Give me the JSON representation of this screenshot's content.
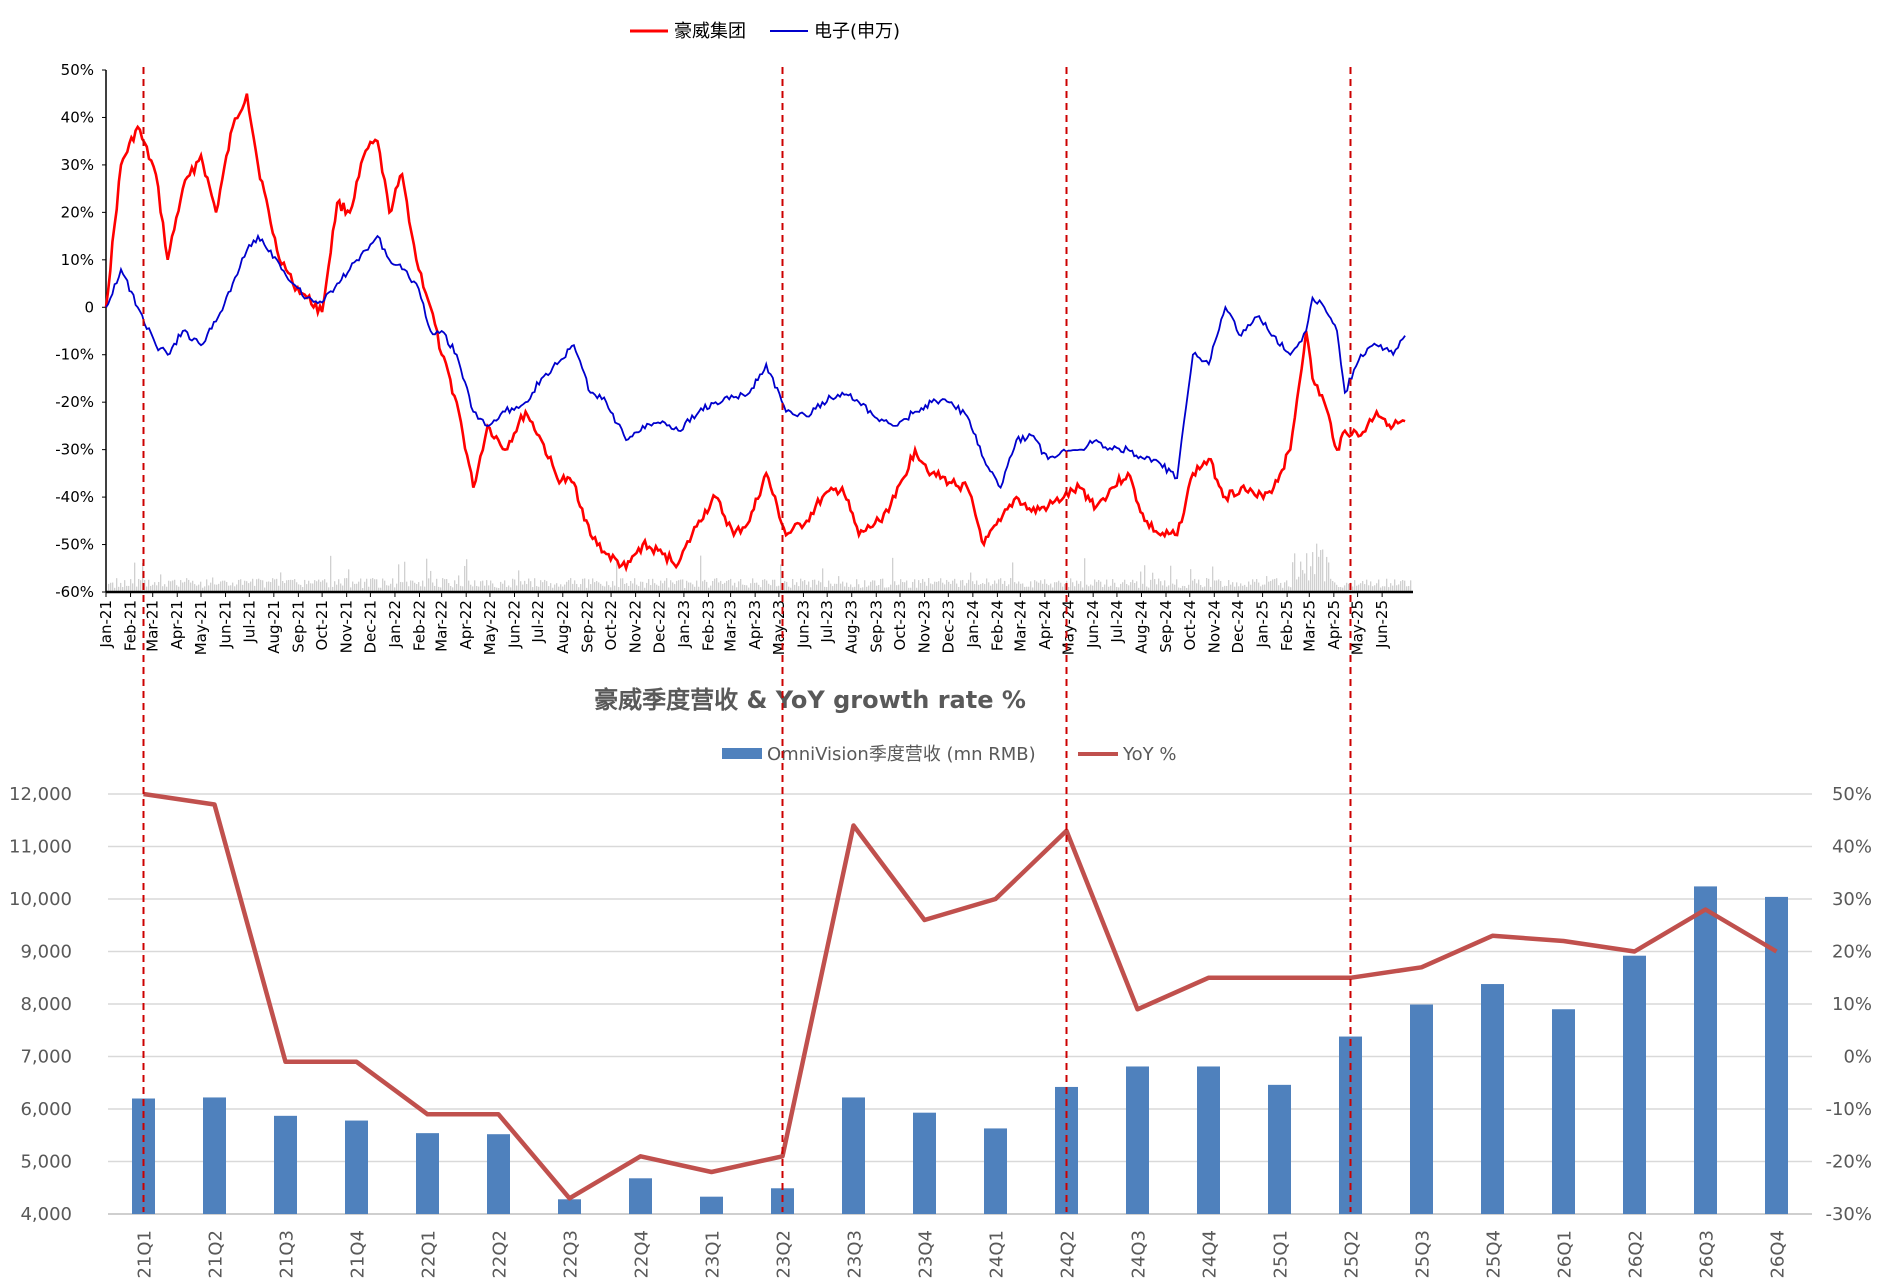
{
  "chart_data": [
    {
      "type": "line",
      "legend_position": "top",
      "series": [
        {
          "name": "豪威集团",
          "color": "#ff0000",
          "x": [
            "2021-01-01",
            "2021-01-20",
            "2021-02-10",
            "2021-03-05",
            "2021-03-20",
            "2021-04-08",
            "2021-05-01",
            "2021-05-20",
            "2021-06-10",
            "2021-06-28",
            "2021-07-12",
            "2021-08-05",
            "2021-08-25",
            "2021-09-12",
            "2021-10-01",
            "2021-10-20",
            "2021-11-05",
            "2021-11-25",
            "2021-12-10",
            "2021-12-25",
            "2022-01-10",
            "2022-01-28",
            "2022-02-15",
            "2022-03-01",
            "2022-03-20",
            "2022-04-10",
            "2022-04-28",
            "2022-05-20",
            "2022-06-15",
            "2022-07-05",
            "2022-07-25",
            "2022-08-15",
            "2022-09-05",
            "2022-09-25",
            "2022-10-20",
            "2022-11-10",
            "2022-12-05",
            "2022-12-25",
            "2023-01-20",
            "2023-02-10",
            "2023-03-05",
            "2023-03-25",
            "2023-04-15",
            "2023-05-10",
            "2023-06-05",
            "2023-06-25",
            "2023-07-20",
            "2023-08-10",
            "2023-09-05",
            "2023-09-25",
            "2023-10-20",
            "2023-11-10",
            "2023-12-05",
            "2023-12-25",
            "2024-01-15",
            "2024-02-05",
            "2024-02-25",
            "2024-03-15",
            "2024-04-05",
            "2024-04-25",
            "2024-05-15",
            "2024-06-05",
            "2024-06-25",
            "2024-07-15",
            "2024-08-05",
            "2024-08-25",
            "2024-09-15",
            "2024-10-05",
            "2024-10-25",
            "2024-11-15",
            "2024-12-05",
            "2024-12-25",
            "2025-01-15",
            "2025-02-05",
            "2025-02-25",
            "2025-03-05",
            "2025-03-20",
            "2025-04-05",
            "2025-04-15",
            "2025-05-05",
            "2025-05-25",
            "2025-06-15",
            "2025-06-30"
          ],
          "y": [
            0,
            30,
            38,
            28,
            10,
            25,
            32,
            20,
            38,
            45,
            30,
            12,
            5,
            2,
            -1,
            22,
            20,
            33,
            35,
            20,
            28,
            10,
            0,
            -10,
            -20,
            -38,
            -25,
            -30,
            -22,
            -28,
            -36,
            -37,
            -48,
            -52,
            -55,
            -50,
            -52,
            -54,
            -45,
            -40,
            -48,
            -45,
            -35,
            -48,
            -45,
            -40,
            -38,
            -48,
            -45,
            -40,
            -30,
            -35,
            -37,
            -38,
            -50,
            -45,
            -40,
            -43,
            -42,
            -40,
            -38,
            -42,
            -38,
            -35,
            -45,
            -48,
            -48,
            -35,
            -32,
            -40,
            -38,
            -40,
            -38,
            -30,
            -5,
            -15,
            -20,
            -30,
            -26,
            -27,
            -22,
            -25,
            -24
          ]
        },
        {
          "name": "电子(申万)",
          "color": "#0000cc",
          "x": [
            "2021-01-01",
            "2021-01-20",
            "2021-02-10",
            "2021-03-05",
            "2021-03-20",
            "2021-04-08",
            "2021-05-01",
            "2021-05-20",
            "2021-06-10",
            "2021-06-28",
            "2021-07-12",
            "2021-08-05",
            "2021-08-25",
            "2021-09-12",
            "2021-10-01",
            "2021-10-20",
            "2021-11-05",
            "2021-11-25",
            "2021-12-10",
            "2021-12-25",
            "2022-01-10",
            "2022-01-28",
            "2022-02-15",
            "2022-03-01",
            "2022-03-20",
            "2022-04-10",
            "2022-04-28",
            "2022-05-20",
            "2022-06-15",
            "2022-07-05",
            "2022-07-25",
            "2022-08-15",
            "2022-09-05",
            "2022-09-25",
            "2022-10-20",
            "2022-11-10",
            "2022-12-05",
            "2022-12-25",
            "2023-01-20",
            "2023-02-10",
            "2023-03-05",
            "2023-03-25",
            "2023-04-15",
            "2023-05-10",
            "2023-06-05",
            "2023-06-25",
            "2023-07-20",
            "2023-08-10",
            "2023-09-05",
            "2023-09-25",
            "2023-10-20",
            "2023-11-10",
            "2023-12-05",
            "2023-12-25",
            "2024-01-15",
            "2024-02-05",
            "2024-02-25",
            "2024-03-15",
            "2024-04-05",
            "2024-04-25",
            "2024-05-15",
            "2024-06-05",
            "2024-06-25",
            "2024-07-15",
            "2024-08-05",
            "2024-08-25",
            "2024-09-15",
            "2024-10-05",
            "2024-10-25",
            "2024-11-15",
            "2024-12-05",
            "2024-12-25",
            "2025-01-15",
            "2025-02-05",
            "2025-02-25",
            "2025-03-05",
            "2025-03-20",
            "2025-04-05",
            "2025-04-15",
            "2025-05-05",
            "2025-05-25",
            "2025-06-15",
            "2025-06-30"
          ],
          "y": [
            0,
            8,
            0,
            -8,
            -10,
            -5,
            -8,
            -3,
            5,
            12,
            15,
            10,
            5,
            2,
            1,
            5,
            8,
            12,
            15,
            10,
            8,
            5,
            -5,
            -5,
            -10,
            -22,
            -25,
            -22,
            -20,
            -15,
            -12,
            -8,
            -18,
            -20,
            -28,
            -25,
            -24,
            -26,
            -22,
            -20,
            -19,
            -18,
            -12,
            -22,
            -23,
            -20,
            -18,
            -20,
            -24,
            -25,
            -22,
            -20,
            -20,
            -23,
            -32,
            -38,
            -28,
            -27,
            -32,
            -30,
            -30,
            -28,
            -30,
            -30,
            -32,
            -33,
            -36,
            -10,
            -12,
            0,
            -6,
            -2,
            -6,
            -10,
            -5,
            2,
            0,
            -5,
            -18,
            -10,
            -8,
            -10,
            -6
          ]
        }
      ],
      "yticks": [
        "50%",
        "40%",
        "30%",
        "20%",
        "10%",
        "0",
        "-10%",
        "-20%",
        "-30%",
        "-40%",
        "-50%",
        "-60%"
      ],
      "ylim": [
        -60,
        50
      ],
      "xticks": [
        "Jan-21",
        "Feb-21",
        "Mar-21",
        "Apr-21",
        "May-21",
        "Jun-21",
        "Jul-21",
        "Aug-21",
        "Sep-21",
        "Oct-21",
        "Nov-21",
        "Dec-21",
        "Jan-22",
        "Feb-22",
        "Mar-22",
        "Apr-22",
        "May-22",
        "Jun-22",
        "Jul-22",
        "Aug-22",
        "Sep-22",
        "Oct-22",
        "Nov-22",
        "Dec-22",
        "Jan-23",
        "Feb-23",
        "Mar-23",
        "Apr-23",
        "May-23",
        "Jun-23",
        "Jul-23",
        "Aug-23",
        "Sep-23",
        "Oct-23",
        "Nov-23",
        "Dec-23",
        "Jan-24",
        "Feb-24",
        "Mar-24",
        "Apr-24",
        "May-24",
        "Jun-24",
        "Jul-24",
        "Aug-24",
        "Sep-24",
        "Oct-24",
        "Nov-24",
        "Dec-24",
        "Jan-25",
        "Feb-25",
        "Mar-25",
        "Apr-25",
        "May-25",
        "Jun-25"
      ],
      "xtick_labels_shown": [
        "Jan-21",
        "Feb-21",
        "Mar-21",
        "Apr-21",
        "May-21",
        "Jun-21",
        "Jul-21",
        "Aug-21",
        "Sep-21",
        "Oct-21",
        "Nov-21",
        "Dec-21",
        "Jan-22",
        "Feb-22",
        "Mar-22",
        "Apr-22",
        "May-22",
        "Jun-22",
        "Jul-22",
        "Aug-22",
        "Sep-22",
        "Oct-22",
        "Nov-22",
        "Dec-22",
        "Jan-23",
        "Feb-23",
        "Mar-23",
        "Apr-23",
        "May-23",
        "Jun-23",
        "Jul-23",
        "Aug-23",
        "Sep-23",
        "Oct-23",
        "Nov-23",
        "Dec-23",
        "Jan-24",
        "Feb-24",
        "Mar-24",
        "Apr-24",
        "May-24",
        "Jun-24",
        "Jul-24",
        "Aug-24",
        "Sep-24",
        "Oct-24",
        "Nov-24",
        "Dec-24",
        "Jan-25",
        "Feb-25",
        "Mar-25",
        "Apr-25",
        "May-25",
        "Jun-25"
      ],
      "volume_bars_color": "#d0d0d0",
      "reference_lines_color": "#cc0000",
      "reference_dates": [
        "2021-02-01",
        "2023-04-01",
        "2024-04-01",
        "2025-04-01"
      ]
    },
    {
      "type": "bar",
      "title": "豪威季度营收 & YoY growth rate %",
      "legend_position": "top",
      "categories": [
        "21Q1",
        "21Q2",
        "21Q3",
        "21Q4",
        "22Q1",
        "22Q2",
        "22Q3",
        "22Q4",
        "23Q1",
        "23Q2",
        "23Q3",
        "23Q4",
        "24Q1",
        "24Q2",
        "24Q3",
        "24Q4",
        "25Q1",
        "25Q2",
        "25Q3",
        "25Q4",
        "26Q1",
        "26Q2",
        "26Q3",
        "26Q4"
      ],
      "series": [
        {
          "name": "OmniVision季度营收 (mn RMB)",
          "axis": "left",
          "color": "#4f81bd",
          "values": [
            6200,
            6220,
            5870,
            5780,
            5540,
            5520,
            4280,
            4680,
            4330,
            4490,
            6220,
            5930,
            5630,
            6420,
            6810,
            6810,
            6460,
            7380,
            7990,
            8380,
            7900,
            8920,
            10240,
            10040
          ]
        },
        {
          "name": "YoY %",
          "axis": "right",
          "type": "line",
          "color": "#c0504d",
          "values": [
            50,
            48,
            -1,
            -1,
            -11,
            -11,
            -27,
            -19,
            -22,
            -19,
            44,
            26,
            30,
            43,
            9,
            15,
            15,
            15,
            17,
            23,
            22,
            20,
            28,
            20
          ]
        }
      ],
      "yticks_left": [
        "12,000",
        "11,000",
        "10,000",
        "9,000",
        "8,000",
        "7,000",
        "6,000",
        "5,000",
        "4,000"
      ],
      "ylim_left": [
        4000,
        12000
      ],
      "yticks_right": [
        "50%",
        "40%",
        "30%",
        "20%",
        "10%",
        "0%",
        "-10%",
        "-20%",
        "-30%"
      ],
      "ylim_right": [
        -30,
        50
      ],
      "grid": true,
      "reference_lines_color": "#cc0000",
      "reference_categories": [
        "21Q1",
        "23Q2",
        "24Q2",
        "25Q2"
      ]
    }
  ]
}
